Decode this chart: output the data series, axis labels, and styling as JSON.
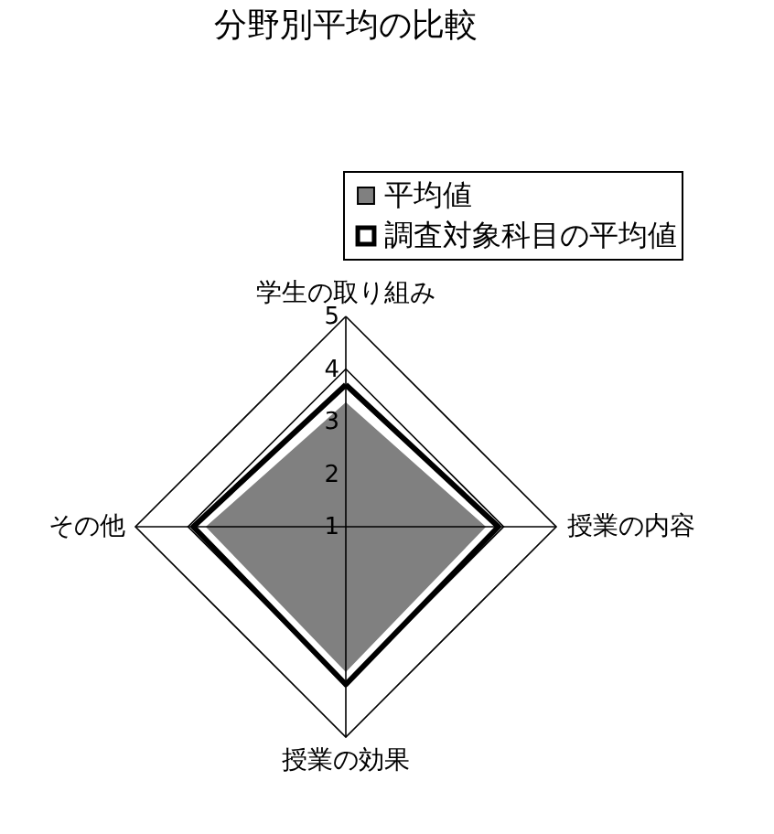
{
  "chart_data": {
    "type": "radar",
    "title": "分野別平均の比較",
    "categories": [
      "学生の取り組み",
      "授業の内容",
      "授業の効果",
      "その他"
    ],
    "series": [
      {
        "name": "平均値",
        "color": "#808080",
        "values": [
          3.4,
          3.7,
          3.8,
          3.7
        ]
      },
      {
        "name": "調査対象科目の平均値",
        "color": "#000000",
        "values": [
          3.7,
          3.9,
          4.0,
          3.9
        ]
      }
    ],
    "ylim": [
      1,
      5
    ],
    "yticks": [
      1,
      2,
      3,
      4,
      5
    ],
    "grid": true,
    "legend": "top right"
  }
}
